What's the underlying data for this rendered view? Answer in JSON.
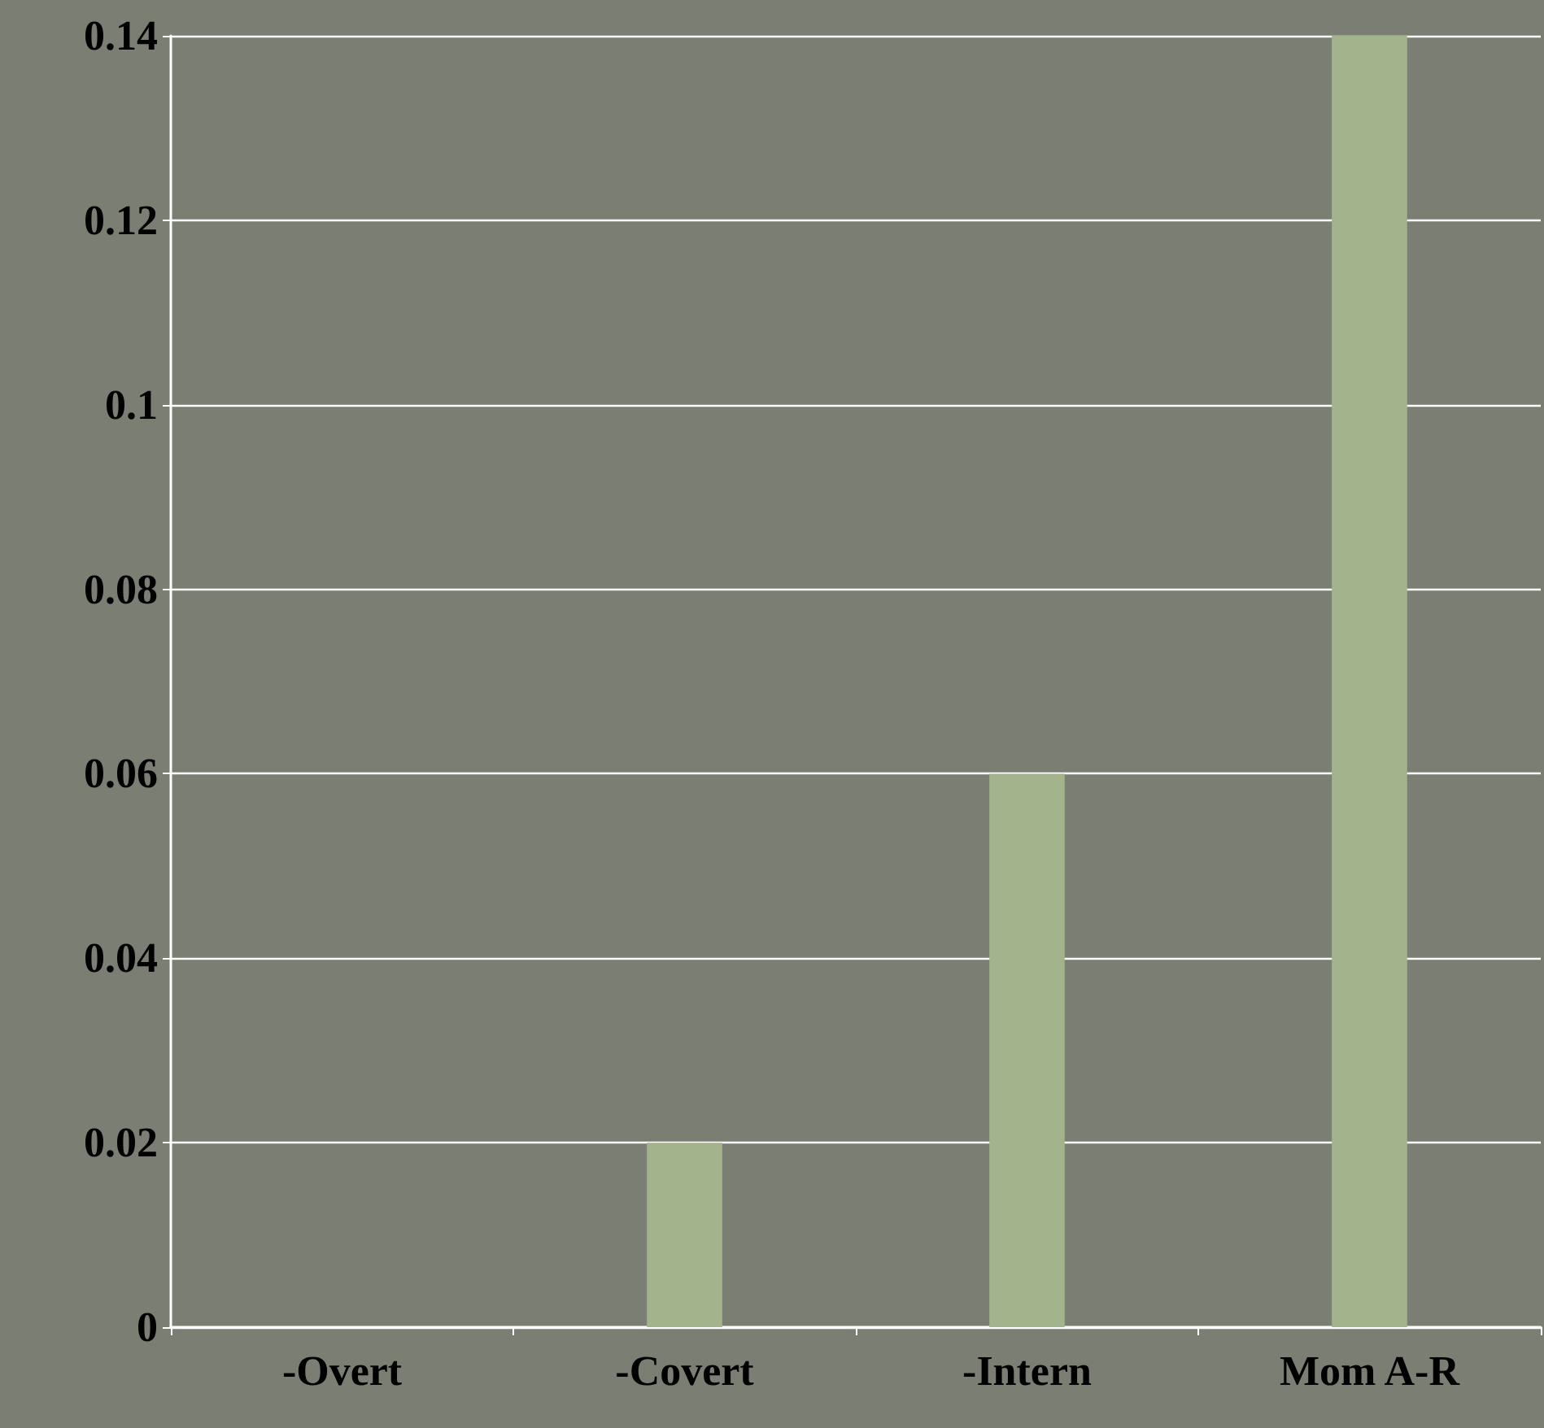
{
  "chart_data": {
    "type": "bar",
    "categories": [
      "-Overt",
      "-Covert",
      "-Intern",
      "Mom A-R"
    ],
    "values": [
      0,
      0.02,
      0.06,
      0.14
    ],
    "color": "#a3b38c",
    "ylim": [
      0,
      0.14
    ],
    "yticks": [
      0,
      0.02,
      0.04,
      0.06,
      0.08,
      0.1,
      0.12,
      0.14
    ],
    "grid": "y"
  }
}
